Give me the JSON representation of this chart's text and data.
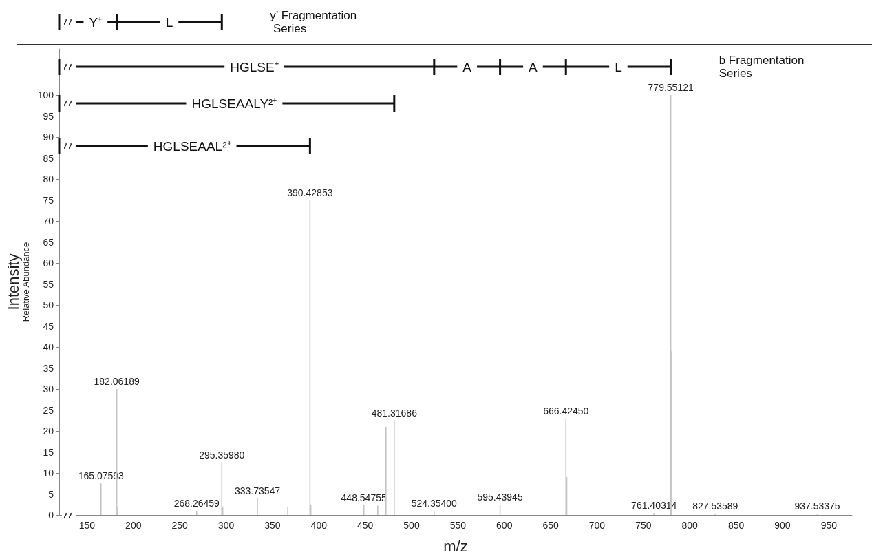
{
  "chart_data": {
    "type": "bar",
    "x": [
      165.07593,
      182.06189,
      183.1,
      268.26459,
      295.3598,
      296.4,
      333.73547,
      366.5,
      390.42853,
      391.4,
      448.54755,
      463.5,
      472.4,
      481.31686,
      524.354,
      595.43945,
      666.4245,
      667.4,
      761.40314,
      779.55121,
      780.5,
      827.53589,
      937.53375
    ],
    "values": [
      7.5,
      30,
      2,
      1,
      12.5,
      2,
      4,
      2,
      75,
      2.5,
      2.3,
      2.2,
      21,
      22.5,
      1,
      2.4,
      23,
      9,
      0.5,
      100,
      39,
      0.3,
      0.3
    ],
    "color": "#c4c4c4",
    "xlabel": "m/z",
    "ylabel": "Intensity\nRelative Abundance",
    "xlim": [
      120,
      975
    ],
    "xticks": [
      150,
      200,
      250,
      300,
      350,
      400,
      450,
      500,
      550,
      600,
      650,
      700,
      750,
      800,
      850,
      900,
      950
    ],
    "ylim": [
      0,
      111
    ],
    "yticks": [
      0,
      5,
      10,
      15,
      20,
      25,
      30,
      35,
      40,
      45,
      50,
      55,
      60,
      65,
      70,
      75,
      80,
      85,
      90,
      95,
      100
    ],
    "annotations": [
      {
        "text": "165.07593",
        "x": 165.07593,
        "y": 7.5
      },
      {
        "text": "182.06189",
        "x": 182.06189,
        "y": 30
      },
      {
        "text": "268.26459",
        "x": 268.26459,
        "y": 1
      },
      {
        "text": "295.35980",
        "x": 295.3598,
        "y": 12.5
      },
      {
        "text": "333.73547",
        "x": 333.73547,
        "y": 4
      },
      {
        "text": "390.42853",
        "x": 390.42853,
        "y": 75
      },
      {
        "text": "448.54755",
        "x": 448.54755,
        "y": 2.3
      },
      {
        "text": "481.31686",
        "x": 481.31686,
        "y": 22.5
      },
      {
        "text": "524.35400",
        "x": 524.354,
        "y": 1
      },
      {
        "text": "595.43945",
        "x": 595.43945,
        "y": 2.4
      },
      {
        "text": "666.42450",
        "x": 666.4245,
        "y": 23
      },
      {
        "text": "761.40314",
        "x": 761.40314,
        "y": 0.5
      },
      {
        "text": "779.55121",
        "x": 779.55121,
        "y": 100
      },
      {
        "text": "827.53589",
        "x": 827.53589,
        "y": 0.3
      },
      {
        "text": "937.53375",
        "x": 937.53375,
        "y": 0.3
      },
      "Y⁺",
      "L",
      "y’ Fragmentation Series",
      "HGLSE⁺",
      "A",
      "A",
      "L",
      "b Fragmentation Series",
      "HGLSEAALY²⁺",
      "HGLSEAAL²⁺"
    ],
    "grid": false
  }
}
